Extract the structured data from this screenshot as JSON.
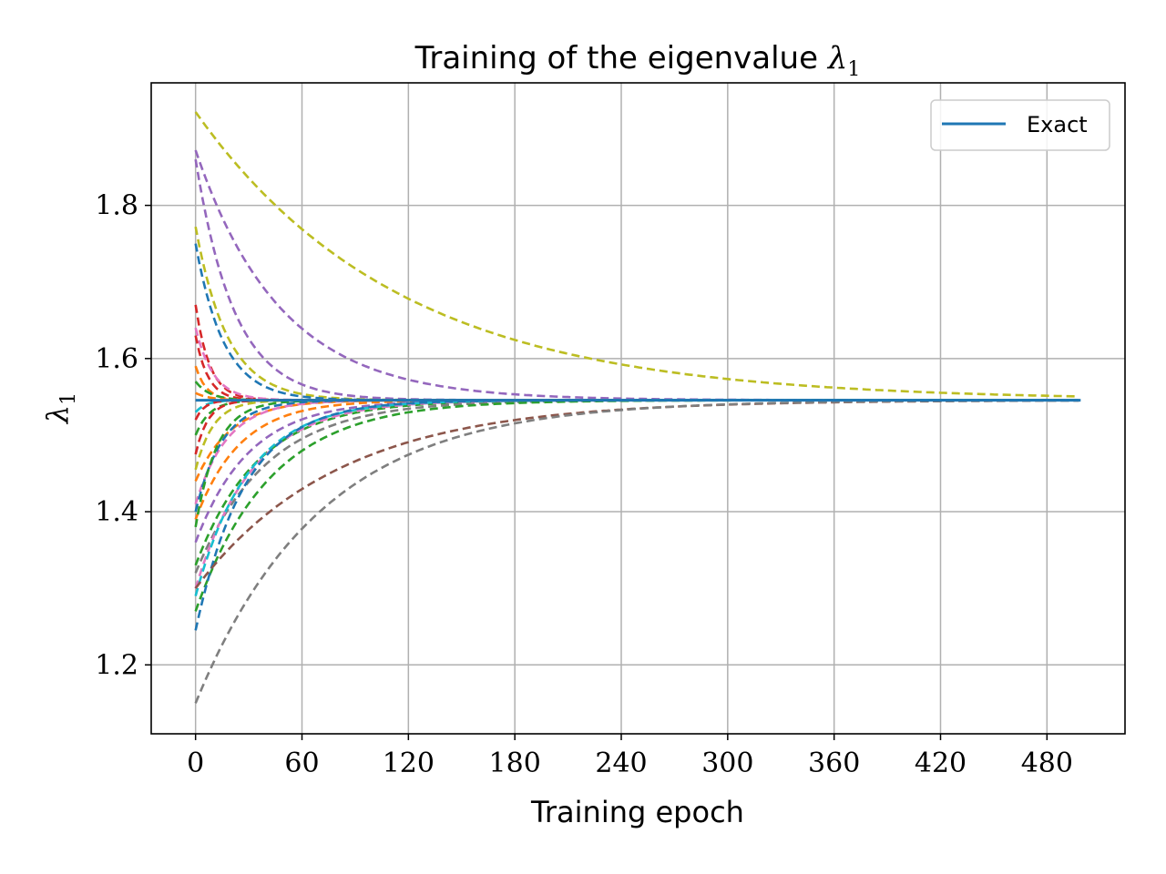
{
  "chart_data": {
    "type": "line",
    "title_main": "Training of the eigenvalue ",
    "title_symbol": "λ",
    "title_sub": "1",
    "xlabel": "Training epoch",
    "ylabel_symbol": "λ",
    "ylabel_sub": "1",
    "xlim": [
      -25,
      524
    ],
    "ylim": [
      1.11,
      1.96
    ],
    "xticks": [
      0,
      60,
      120,
      180,
      240,
      300,
      360,
      420,
      480
    ],
    "yticks": [
      1.2,
      1.4,
      1.6,
      1.8
    ],
    "ytick_labels": [
      "1.2",
      "1.4",
      "1.6",
      "1.8"
    ],
    "grid": true,
    "legend_position": "top-right",
    "legend_label": "Exact",
    "exact": {
      "value": 1.5456,
      "x_start": 0,
      "x_end": 499,
      "color": "#1f77b4"
    },
    "epochs_end": 499,
    "trials": [
      {
        "start": 1.922,
        "tau": 115,
        "color": "#bcbd22"
      },
      {
        "start": 1.872,
        "tau": 48,
        "color": "#9467bd"
      },
      {
        "start": 1.772,
        "tau": 18,
        "color": "#bcbd22"
      },
      {
        "start": 1.75,
        "tau": 16,
        "color": "#1f77b4"
      },
      {
        "start": 1.86,
        "tau": 22,
        "color": "#9467bd"
      },
      {
        "start": 1.67,
        "tau": 8,
        "color": "#d62728"
      },
      {
        "start": 1.64,
        "tau": 10,
        "color": "#e377c2"
      },
      {
        "start": 1.63,
        "tau": 7,
        "color": "#d62728"
      },
      {
        "start": 1.59,
        "tau": 6,
        "color": "#ff7f0e"
      },
      {
        "start": 1.57,
        "tau": 8,
        "color": "#2ca02c"
      },
      {
        "start": 1.555,
        "tau": 8,
        "color": "#ff7f0e"
      },
      {
        "start": 1.53,
        "tau": 6,
        "color": "#17becf"
      },
      {
        "start": 1.52,
        "tau": 5,
        "color": "#d62728"
      },
      {
        "start": 1.5,
        "tau": 8,
        "color": "#2ca02c"
      },
      {
        "start": 1.475,
        "tau": 7,
        "color": "#d62728"
      },
      {
        "start": 1.455,
        "tau": 10,
        "color": "#bcbd22"
      },
      {
        "start": 1.44,
        "tau": 20,
        "color": "#ff7f0e"
      },
      {
        "start": 1.41,
        "tau": 18,
        "color": "#e377c2"
      },
      {
        "start": 1.4,
        "tau": 15,
        "color": "#1f77b4"
      },
      {
        "start": 1.39,
        "tau": 25,
        "color": "#ff7f0e"
      },
      {
        "start": 1.38,
        "tau": 12,
        "color": "#2ca02c"
      },
      {
        "start": 1.36,
        "tau": 30,
        "color": "#9467bd"
      },
      {
        "start": 1.33,
        "tau": 35,
        "color": "#2ca02c"
      },
      {
        "start": 1.32,
        "tau": 40,
        "color": "#7f7f7f"
      },
      {
        "start": 1.3,
        "tau": 32,
        "color": "#e377c2"
      },
      {
        "start": 1.29,
        "tau": 30,
        "color": "#17becf"
      },
      {
        "start": 1.27,
        "tau": 42,
        "color": "#2ca02c"
      },
      {
        "start": 1.245,
        "tau": 28,
        "color": "#1f77b4"
      },
      {
        "start": 1.3,
        "tau": 80,
        "color": "#8c564b"
      },
      {
        "start": 1.15,
        "tau": 70,
        "color": "#7f7f7f"
      }
    ]
  }
}
